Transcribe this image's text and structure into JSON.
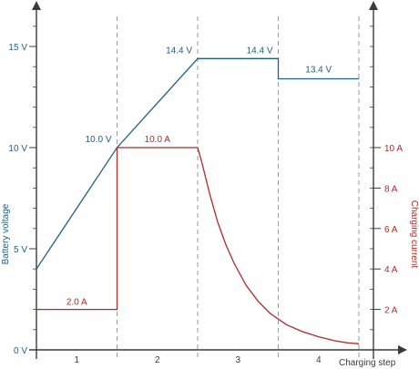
{
  "chart_data": {
    "type": "line",
    "x_label": "Charging step",
    "steps": [
      "1",
      "2",
      "3",
      "4"
    ],
    "left_axis": {
      "label": "Battery voltage",
      "ylim": [
        0,
        16
      ],
      "ticks": [
        0,
        5,
        10,
        15
      ],
      "tick_labels": [
        "0 V",
        "5 V",
        "10 V",
        "15 V"
      ],
      "color": "#1f5f84"
    },
    "right_axis": {
      "label": "Charging current",
      "ylim": [
        0,
        16
      ],
      "ticks": [
        2,
        4,
        6,
        8,
        10
      ],
      "tick_labels": [
        "2 A",
        "4 A",
        "6 A",
        "8 A",
        "10 A"
      ],
      "color": "#b32828"
    },
    "series": [
      {
        "name": "Battery voltage",
        "axis": "left",
        "color": "#1f5f84",
        "points": [
          [
            0,
            4.0
          ],
          [
            1,
            10.0
          ],
          [
            2,
            14.4
          ],
          [
            3,
            14.4
          ],
          [
            3,
            13.4
          ],
          [
            4,
            13.4
          ]
        ]
      },
      {
        "name": "Charging current",
        "axis": "right",
        "color": "#b32828",
        "points": [
          [
            0,
            2.0
          ],
          [
            1,
            2.0
          ],
          [
            1,
            10.0
          ],
          [
            2,
            10.0
          ],
          [
            2.05,
            9.3
          ],
          [
            2.15,
            7.7
          ],
          [
            2.25,
            6.3
          ],
          [
            2.35,
            5.2
          ],
          [
            2.45,
            4.3
          ],
          [
            2.6,
            3.2
          ],
          [
            2.75,
            2.4
          ],
          [
            2.9,
            1.8
          ],
          [
            3.1,
            1.25
          ],
          [
            3.3,
            0.9
          ],
          [
            3.5,
            0.65
          ],
          [
            3.7,
            0.45
          ],
          [
            3.85,
            0.35
          ],
          [
            4,
            0.3
          ]
        ]
      }
    ],
    "annotations": [
      {
        "text": "10.0 V",
        "series": "Battery voltage",
        "at": [
          1,
          10.0
        ]
      },
      {
        "text": "14.4 V",
        "series": "Battery voltage",
        "at": [
          2,
          14.4
        ]
      },
      {
        "text": "14.4 V",
        "series": "Battery voltage",
        "at": [
          3,
          14.4
        ]
      },
      {
        "text": "13.4 V",
        "series": "Battery voltage",
        "at": [
          3.5,
          13.4
        ]
      },
      {
        "text": "2.0 A",
        "series": "Charging current",
        "at": [
          0.5,
          2.0
        ]
      },
      {
        "text": "10.0 A",
        "series": "Charging current",
        "at": [
          1.5,
          10.0
        ]
      }
    ],
    "phase_boundaries": [
      1,
      2,
      3,
      4
    ]
  }
}
